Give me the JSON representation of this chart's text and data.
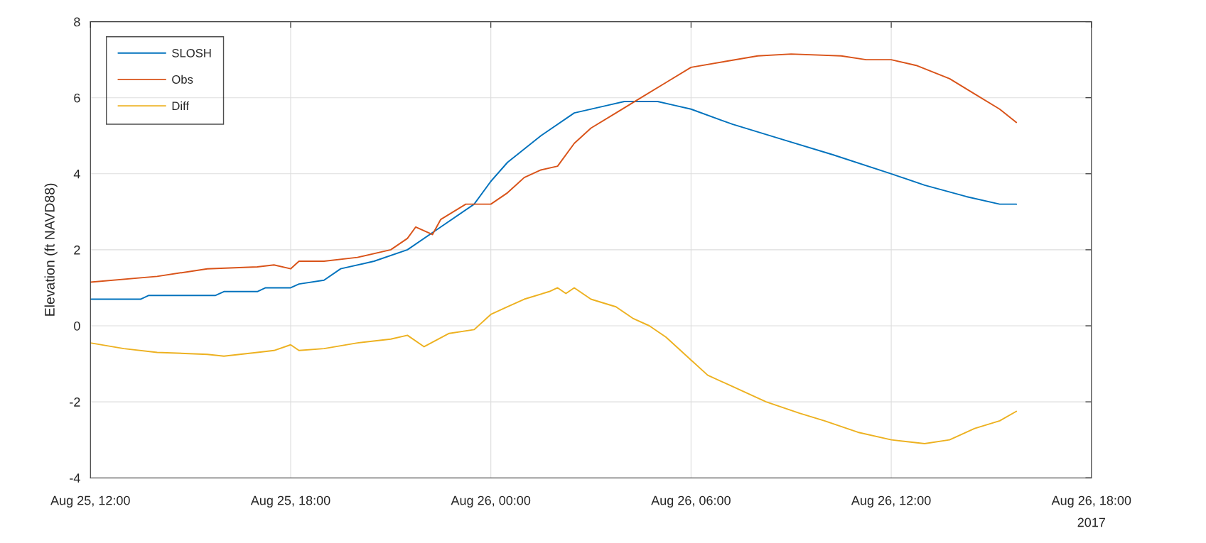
{
  "chart_data": {
    "type": "line",
    "ylabel": "Elevation (ft NAVD88)",
    "xlim": [
      "2017-08-25T12:00",
      "2017-08-26T18:00"
    ],
    "xticks": [
      {
        "value": "2017-08-25T12:00",
        "label": "Aug 25, 12:00"
      },
      {
        "value": "2017-08-25T18:00",
        "label": "Aug 25, 18:00"
      },
      {
        "value": "2017-08-26T00:00",
        "label": "Aug 26, 00:00"
      },
      {
        "value": "2017-08-26T06:00",
        "label": "Aug 26, 06:00"
      },
      {
        "value": "2017-08-26T12:00",
        "label": "Aug 26, 12:00"
      },
      {
        "value": "2017-08-26T18:00",
        "label": "Aug 26, 18:00"
      }
    ],
    "ylim": [
      -4,
      8
    ],
    "yticks": [
      -4,
      -2,
      0,
      2,
      4,
      6,
      8
    ],
    "grid": true,
    "legend": "top left",
    "marker": "none",
    "line_style": "solid",
    "annotations": [
      "2017"
    ],
    "series": [
      {
        "name": "SLOSH",
        "color": "#0072bd",
        "x": [
          "2017-08-25T12:00",
          "2017-08-25T13:30",
          "2017-08-25T13:45",
          "2017-08-25T15:45",
          "2017-08-25T16:00",
          "2017-08-25T17:00",
          "2017-08-25T17:15",
          "2017-08-25T18:00",
          "2017-08-25T18:15",
          "2017-08-25T19:00",
          "2017-08-25T19:30",
          "2017-08-25T20:30",
          "2017-08-25T21:30",
          "2017-08-25T22:30",
          "2017-08-25T23:30",
          "2017-08-26T00:00",
          "2017-08-26T00:30",
          "2017-08-26T01:30",
          "2017-08-26T02:30",
          "2017-08-26T03:30",
          "2017-08-26T04:00",
          "2017-08-26T05:00",
          "2017-08-26T05:30",
          "2017-08-26T06:00",
          "2017-08-26T07:15",
          "2017-08-26T08:45",
          "2017-08-26T10:15",
          "2017-08-26T12:00",
          "2017-08-26T13:00",
          "2017-08-26T14:15",
          "2017-08-26T15:15",
          "2017-08-26T15:45"
        ],
        "values": [
          0.7,
          0.7,
          0.8,
          0.8,
          0.9,
          0.9,
          1.0,
          1.0,
          1.1,
          1.2,
          1.5,
          1.7,
          2.0,
          2.6,
          3.2,
          3.8,
          4.3,
          5.0,
          5.6,
          5.8,
          5.9,
          5.9,
          5.8,
          5.7,
          5.3,
          4.9,
          4.5,
          4.0,
          3.7,
          3.4,
          3.2,
          3.2
        ]
      },
      {
        "name": "Obs",
        "color": "#d95319",
        "x": [
          "2017-08-25T12:00",
          "2017-08-25T14:00",
          "2017-08-25T15:30",
          "2017-08-25T17:00",
          "2017-08-25T17:30",
          "2017-08-25T18:00",
          "2017-08-25T18:15",
          "2017-08-25T19:00",
          "2017-08-25T20:00",
          "2017-08-25T21:00",
          "2017-08-25T21:30",
          "2017-08-25T21:45",
          "2017-08-25T22:15",
          "2017-08-25T22:30",
          "2017-08-25T23:15",
          "2017-08-26T00:00",
          "2017-08-26T00:30",
          "2017-08-26T01:00",
          "2017-08-26T01:30",
          "2017-08-26T02:00",
          "2017-08-26T02:30",
          "2017-08-26T03:00",
          "2017-08-26T03:45",
          "2017-08-26T04:30",
          "2017-08-26T05:15",
          "2017-08-26T06:00",
          "2017-08-26T07:00",
          "2017-08-26T08:00",
          "2017-08-26T09:00",
          "2017-08-26T10:30",
          "2017-08-26T11:15",
          "2017-08-26T12:00",
          "2017-08-26T12:45",
          "2017-08-26T13:45",
          "2017-08-26T14:30",
          "2017-08-26T15:15",
          "2017-08-26T15:45"
        ],
        "values": [
          1.15,
          1.3,
          1.5,
          1.55,
          1.6,
          1.5,
          1.7,
          1.7,
          1.8,
          2.0,
          2.3,
          2.6,
          2.4,
          2.8,
          3.2,
          3.2,
          3.5,
          3.9,
          4.1,
          4.2,
          4.8,
          5.2,
          5.6,
          6.0,
          6.4,
          6.8,
          6.95,
          7.1,
          7.15,
          7.1,
          7.0,
          7.0,
          6.85,
          6.5,
          6.1,
          5.7,
          5.35
        ]
      },
      {
        "name": "Diff",
        "color": "#edb120",
        "x": [
          "2017-08-25T12:00",
          "2017-08-25T13:00",
          "2017-08-25T14:00",
          "2017-08-25T15:30",
          "2017-08-25T16:00",
          "2017-08-25T17:00",
          "2017-08-25T17:30",
          "2017-08-25T18:00",
          "2017-08-25T18:15",
          "2017-08-25T19:00",
          "2017-08-25T20:00",
          "2017-08-25T21:00",
          "2017-08-25T21:30",
          "2017-08-25T22:00",
          "2017-08-25T22:45",
          "2017-08-25T23:30",
          "2017-08-26T00:00",
          "2017-08-26T00:30",
          "2017-08-26T01:00",
          "2017-08-26T01:45",
          "2017-08-26T02:00",
          "2017-08-26T02:15",
          "2017-08-26T02:30",
          "2017-08-26T03:00",
          "2017-08-26T03:45",
          "2017-08-26T04:15",
          "2017-08-26T04:45",
          "2017-08-26T05:15",
          "2017-08-26T06:00",
          "2017-08-26T06:30",
          "2017-08-26T07:15",
          "2017-08-26T08:15",
          "2017-08-26T09:15",
          "2017-08-26T10:00",
          "2017-08-26T11:00",
          "2017-08-26T12:00",
          "2017-08-26T13:00",
          "2017-08-26T13:45",
          "2017-08-26T14:30",
          "2017-08-26T15:15",
          "2017-08-26T15:45"
        ],
        "values": [
          -0.45,
          -0.6,
          -0.7,
          -0.75,
          -0.8,
          -0.7,
          -0.65,
          -0.5,
          -0.65,
          -0.6,
          -0.45,
          -0.35,
          -0.25,
          -0.55,
          -0.2,
          -0.1,
          0.3,
          0.5,
          0.7,
          0.9,
          1.0,
          0.85,
          1.0,
          0.7,
          0.5,
          0.2,
          0.0,
          -0.3,
          -0.9,
          -1.3,
          -1.6,
          -2.0,
          -2.3,
          -2.5,
          -2.8,
          -3.0,
          -3.1,
          -3.0,
          -2.7,
          -2.5,
          -2.25
        ]
      }
    ]
  }
}
